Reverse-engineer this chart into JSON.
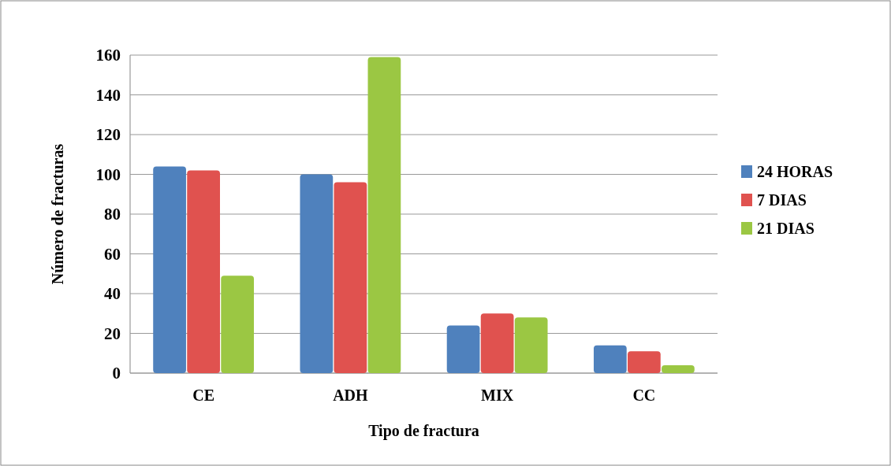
{
  "chart_data": {
    "type": "bar",
    "xlabel": "Tipo de fractura",
    "ylabel": "Número de fracturas",
    "categories": [
      "CE",
      "ADH",
      "MIX",
      "CC"
    ],
    "series": [
      {
        "name": "24 HORAS",
        "color": "#4f81bd",
        "values": [
          104,
          100,
          24,
          14
        ]
      },
      {
        "name": "7 DIAS",
        "color": "#e0524f",
        "values": [
          102,
          96,
          30,
          11
        ]
      },
      {
        "name": "21 DIAS",
        "color": "#9bc743",
        "values": [
          49,
          159,
          28,
          4
        ]
      }
    ],
    "ylim": [
      0,
      160
    ],
    "yticks": [
      0,
      20,
      40,
      60,
      80,
      100,
      120,
      140,
      160
    ],
    "grid": "y",
    "legend": "right"
  }
}
